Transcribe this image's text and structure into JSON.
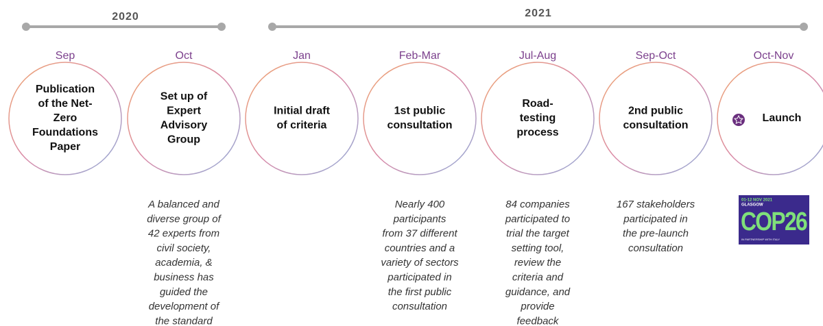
{
  "years": [
    {
      "label": "2020"
    },
    {
      "label": "2021"
    }
  ],
  "items": [
    {
      "period": "Sep",
      "title": [
        "Publication",
        "of the Net-",
        "Zero",
        "Foundations",
        "Paper"
      ],
      "description": []
    },
    {
      "period": "Oct",
      "title": [
        "Set up of",
        "Expert",
        "Advisory",
        "Group"
      ],
      "description": [
        "A balanced and",
        "diverse group of",
        "42 experts from",
        "civil society,",
        "academia, &",
        "business has",
        "guided the",
        "development of",
        "the standard"
      ]
    },
    {
      "period": "Jan",
      "title": [
        "Initial draft",
        "of criteria"
      ],
      "description": []
    },
    {
      "period": "Feb-Mar",
      "title": [
        "1st public",
        "consultation"
      ],
      "description": [
        "Nearly 400",
        "participants",
        "from 37 different",
        "countries and a",
        "variety of sectors",
        "participated in",
        "the first public",
        "consultation"
      ]
    },
    {
      "period": "Jul-Aug",
      "title": [
        "Road-",
        "testing",
        "process"
      ],
      "description": [
        "84 companies",
        "participated to",
        "trial the target",
        "setting tool,",
        "review the",
        "criteria and",
        "guidance, and",
        "provide",
        "feedback"
      ]
    },
    {
      "period": "Sep-Oct",
      "title": [
        "2nd public",
        "consultation"
      ],
      "description": [
        "167 stakeholders",
        "participated in",
        "the pre-launch",
        "consultation"
      ]
    },
    {
      "period": "Oct-Nov",
      "title": [
        "Launch"
      ],
      "description": []
    }
  ],
  "logo": {
    "dates": "01-12 NOV 2021",
    "city": "GLASGOW",
    "name": "COP26",
    "partner": "IN PARTNERSHIP WITH ITALY"
  }
}
